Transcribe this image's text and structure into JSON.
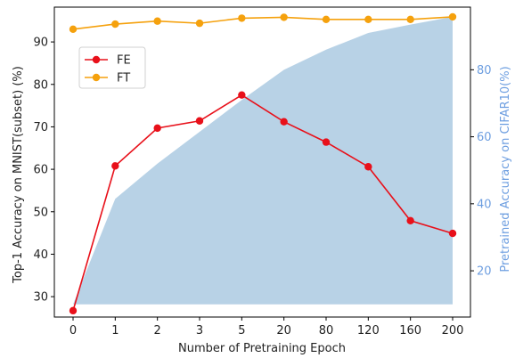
{
  "chart_data": {
    "type": "line",
    "x_categories": [
      "0",
      "1",
      "2",
      "3",
      "5",
      "20",
      "80",
      "120",
      "160",
      "200"
    ],
    "xlabel": "Number of Pretraining Epoch",
    "ylabel_left": "Top-1 Accuracy on MNIST(subset) (%)",
    "ylabel_right": "Pretrained Accuracy on CIFAR10(%)",
    "ylim_left": [
      25.2,
      98.2
    ],
    "yticks_left": [
      30,
      40,
      50,
      60,
      70,
      80,
      90
    ],
    "ylim_right": [
      6.2,
      98.7
    ],
    "yticks_right": [
      20,
      40,
      60,
      80
    ],
    "legend_position": "upper-left",
    "series": [
      {
        "name": "FE",
        "axis": "left",
        "color": "#e8101a",
        "values": [
          26.7,
          60.8,
          69.7,
          71.4,
          77.5,
          71.2,
          66.4,
          60.6,
          47.9,
          44.9
        ]
      },
      {
        "name": "FT",
        "axis": "left",
        "color": "#f5a10d",
        "values": [
          93.0,
          94.2,
          94.9,
          94.4,
          95.6,
          95.8,
          95.3,
          95.3,
          95.3,
          95.9
        ]
      }
    ],
    "area": {
      "axis": "right",
      "color": "#b8d2e6",
      "baseline": 10,
      "values": [
        10,
        41.5,
        52.0,
        61.5,
        71.0,
        80.0,
        86.0,
        91.0,
        93.5,
        95.8
      ]
    }
  }
}
